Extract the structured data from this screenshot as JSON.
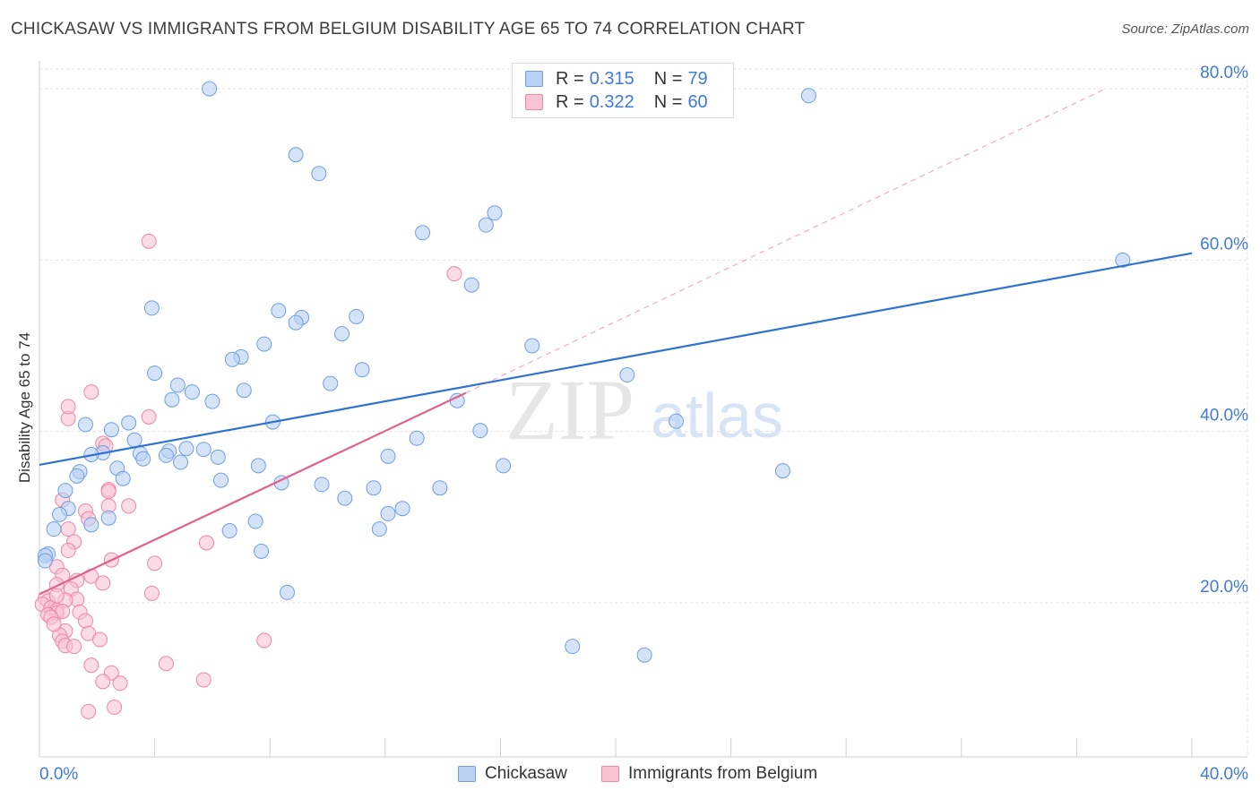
{
  "title": "CHICKASAW VS IMMIGRANTS FROM BELGIUM DISABILITY AGE 65 TO 74 CORRELATION CHART",
  "source": "Source: ZipAtlas.com",
  "watermark": {
    "zip": "ZIP",
    "atlas": "atlas"
  },
  "legend": {
    "rows": [
      {
        "r_label": "R =",
        "r_value": "0.315",
        "n_label": "N =",
        "n_value": "79"
      },
      {
        "r_label": "R =",
        "r_value": "0.322",
        "n_label": "N =",
        "n_value": "60"
      }
    ]
  },
  "bottom_legend": {
    "series1": "Chickasaw",
    "series2": "Immigrants from Belgium"
  },
  "colors": {
    "blue_fill": "#b9d1f3",
    "blue_stroke": "#6f9fe0",
    "blue_line": "#2f72d0",
    "pink_fill": "#f9c3d3",
    "pink_stroke": "#ee86a6",
    "pink_line": "#e0618d",
    "axis_label": "#3f7ad8",
    "grid": "#e2e2e2"
  },
  "chart_data": {
    "type": "scatter",
    "title": "CHICKASAW VS IMMIGRANTS FROM BELGIUM DISABILITY AGE 65 TO 74 CORRELATION CHART",
    "xlabel": "",
    "ylabel": "Disability Age 65 to 74",
    "xlim": [
      0,
      40
    ],
    "ylim": [
      2,
      82
    ],
    "x_tick_labels": [
      "0.0%",
      "40.0%"
    ],
    "y_ticks": [
      20,
      40,
      60,
      80
    ],
    "y_tick_labels": [
      "20.0%",
      "40.0%",
      "60.0%",
      "80.0%"
    ],
    "grid": true,
    "series": [
      {
        "name": "Chickasaw",
        "r": 0.315,
        "n": 79,
        "trend": {
          "x": [
            0,
            40
          ],
          "y": [
            36.1,
            60.8
          ]
        },
        "points": [
          [
            5.9,
            80.0
          ],
          [
            8.9,
            72.3
          ],
          [
            9.7,
            70.1
          ],
          [
            15.8,
            65.5
          ],
          [
            15.5,
            64.1
          ],
          [
            13.3,
            63.2
          ],
          [
            37.6,
            60.0
          ],
          [
            15.0,
            57.1
          ],
          [
            3.9,
            54.4
          ],
          [
            8.3,
            54.1
          ],
          [
            9.1,
            53.3
          ],
          [
            11.0,
            53.4
          ],
          [
            8.9,
            52.7
          ],
          [
            10.5,
            51.4
          ],
          [
            17.1,
            50.0
          ],
          [
            7.8,
            50.2
          ],
          [
            7.0,
            48.7
          ],
          [
            6.7,
            48.4
          ],
          [
            11.2,
            47.2
          ],
          [
            4.0,
            46.8
          ],
          [
            20.4,
            46.6
          ],
          [
            10.1,
            45.6
          ],
          [
            4.8,
            45.4
          ],
          [
            5.3,
            44.6
          ],
          [
            7.1,
            44.8
          ],
          [
            4.6,
            43.7
          ],
          [
            6.0,
            43.5
          ],
          [
            14.5,
            43.6
          ],
          [
            8.1,
            41.1
          ],
          [
            3.1,
            41.0
          ],
          [
            1.6,
            40.8
          ],
          [
            22.1,
            41.2
          ],
          [
            2.5,
            40.2
          ],
          [
            15.3,
            40.1
          ],
          [
            3.3,
            39.0
          ],
          [
            13.1,
            39.2
          ],
          [
            5.1,
            38.0
          ],
          [
            5.7,
            37.9
          ],
          [
            4.5,
            37.7
          ],
          [
            2.2,
            37.5
          ],
          [
            1.8,
            37.3
          ],
          [
            3.5,
            37.4
          ],
          [
            4.4,
            37.2
          ],
          [
            3.6,
            36.8
          ],
          [
            6.2,
            37.0
          ],
          [
            12.1,
            37.1
          ],
          [
            4.9,
            36.4
          ],
          [
            7.6,
            36.0
          ],
          [
            16.1,
            36.0
          ],
          [
            2.7,
            35.7
          ],
          [
            25.8,
            35.4
          ],
          [
            1.4,
            35.3
          ],
          [
            1.3,
            34.8
          ],
          [
            2.9,
            34.5
          ],
          [
            6.3,
            34.3
          ],
          [
            8.4,
            34.0
          ],
          [
            9.8,
            33.8
          ],
          [
            11.6,
            33.4
          ],
          [
            13.9,
            33.4
          ],
          [
            0.9,
            33.1
          ],
          [
            10.6,
            32.2
          ],
          [
            12.6,
            31.0
          ],
          [
            1.0,
            31.0
          ],
          [
            0.7,
            30.3
          ],
          [
            12.1,
            30.4
          ],
          [
            2.4,
            29.9
          ],
          [
            7.5,
            29.5
          ],
          [
            1.8,
            29.1
          ],
          [
            0.5,
            28.6
          ],
          [
            11.8,
            28.6
          ],
          [
            6.6,
            28.4
          ],
          [
            7.7,
            26.0
          ],
          [
            0.3,
            25.7
          ],
          [
            0.2,
            25.5
          ],
          [
            0.2,
            24.9
          ],
          [
            8.6,
            21.2
          ],
          [
            18.5,
            14.9
          ],
          [
            21.0,
            13.9
          ],
          [
            26.7,
            79.2
          ]
        ]
      },
      {
        "name": "Immigrants from Belgium",
        "r": 0.322,
        "n": 60,
        "trend": {
          "x": [
            0,
            14.8
          ],
          "y": [
            21.0,
            44.5
          ]
        },
        "trend_extension": {
          "x": [
            14.8,
            37.0
          ],
          "y": [
            44.5,
            80.0
          ]
        },
        "points": [
          [
            3.8,
            62.2
          ],
          [
            14.4,
            58.4
          ],
          [
            1.8,
            44.6
          ],
          [
            3.8,
            41.7
          ],
          [
            1.0,
            41.5
          ],
          [
            1.0,
            42.9
          ],
          [
            2.2,
            38.6
          ],
          [
            2.3,
            38.3
          ],
          [
            2.4,
            33.2
          ],
          [
            2.4,
            33.0
          ],
          [
            0.8,
            32.0
          ],
          [
            3.1,
            31.3
          ],
          [
            2.4,
            31.3
          ],
          [
            1.6,
            30.7
          ],
          [
            1.7,
            29.8
          ],
          [
            1.0,
            28.6
          ],
          [
            1.2,
            27.1
          ],
          [
            5.8,
            27.0
          ],
          [
            1.0,
            26.1
          ],
          [
            2.5,
            25.0
          ],
          [
            4.0,
            24.6
          ],
          [
            0.6,
            24.2
          ],
          [
            0.8,
            23.2
          ],
          [
            1.8,
            23.1
          ],
          [
            1.3,
            22.6
          ],
          [
            0.6,
            22.1
          ],
          [
            1.1,
            21.6
          ],
          [
            3.9,
            21.1
          ],
          [
            0.2,
            20.5
          ],
          [
            0.3,
            20.2
          ],
          [
            1.3,
            20.4
          ],
          [
            0.9,
            20.3
          ],
          [
            0.1,
            19.8
          ],
          [
            0.4,
            19.4
          ],
          [
            0.6,
            19.1
          ],
          [
            0.6,
            18.8
          ],
          [
            0.8,
            19.0
          ],
          [
            1.4,
            18.9
          ],
          [
            0.3,
            18.6
          ],
          [
            0.4,
            18.3
          ],
          [
            1.6,
            17.9
          ],
          [
            1.7,
            16.4
          ],
          [
            0.9,
            16.7
          ],
          [
            0.7,
            16.2
          ],
          [
            0.8,
            15.5
          ],
          [
            2.1,
            15.7
          ],
          [
            7.8,
            15.6
          ],
          [
            0.9,
            15.0
          ],
          [
            1.8,
            12.7
          ],
          [
            2.5,
            11.8
          ],
          [
            4.4,
            12.9
          ],
          [
            2.2,
            10.8
          ],
          [
            2.8,
            10.6
          ],
          [
            5.7,
            11.0
          ],
          [
            2.6,
            7.8
          ],
          [
            1.7,
            7.3
          ],
          [
            0.5,
            17.5
          ],
          [
            1.2,
            14.9
          ],
          [
            0.6,
            20.8
          ],
          [
            2.2,
            22.3
          ]
        ]
      }
    ]
  }
}
